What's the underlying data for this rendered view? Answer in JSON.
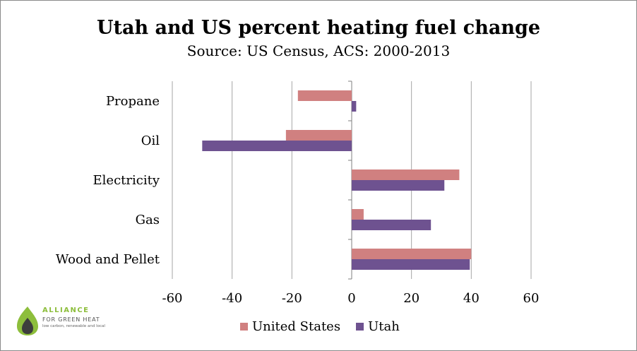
{
  "colors": {
    "united_states": "#d08080",
    "utah": "#6e5290",
    "grid": "#a6a6a6",
    "axis": "#7f7f7f"
  },
  "logo": {
    "line1": "ALLIANCE",
    "line2": "FOR GREEN HEAT",
    "line3": "low carbon, renewable and local",
    "icon": "leaf-flame-icon"
  },
  "chart_data": {
    "type": "bar",
    "orientation": "horizontal",
    "title": "Utah and US percent heating fuel change",
    "subtitle": "Source: US Census, ACS: 2000-2013",
    "categories": [
      "Propane",
      "Oil",
      "Electricity",
      "Gas",
      "Wood and Pellet"
    ],
    "series": [
      {
        "name": "United States",
        "values": [
          -18,
          -22,
          36,
          4,
          40
        ]
      },
      {
        "name": "Utah",
        "values": [
          1.5,
          -50,
          31,
          26.5,
          39.5
        ]
      }
    ],
    "xlim": [
      -60,
      60
    ],
    "xticks": [
      "-60",
      "-40",
      "-20",
      "0",
      "20",
      "40",
      "60"
    ],
    "xlabel": "",
    "ylabel": "",
    "grid": true,
    "legend": "bottom"
  }
}
